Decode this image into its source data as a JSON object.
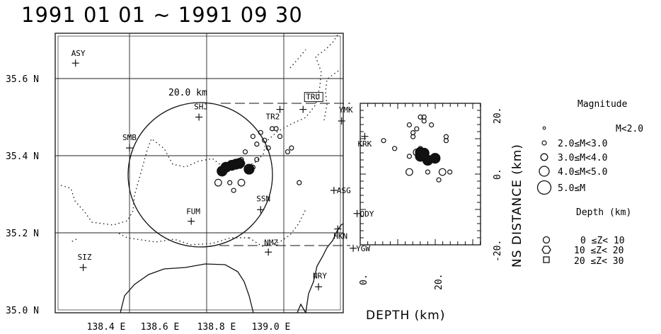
{
  "title": "1991 01 01 ~ 1991 09 30",
  "map": {
    "lon_ticks": [
      "138.4 E",
      "138.6 E",
      "138.8 E",
      "139.0 E"
    ],
    "lat_ticks": [
      "35.6 N",
      "35.4 N",
      "35.2 N",
      "35.0 N"
    ],
    "scale_label": "20.0 km",
    "stations": [
      {
        "code": "ASY",
        "lon": 138.36,
        "lat": 35.64
      },
      {
        "code": "SHJ",
        "lon": 138.68,
        "lat": 35.5
      },
      {
        "code": "TR2",
        "lon": 138.89,
        "lat": 35.52
      },
      {
        "code": "TRU",
        "lon": 138.95,
        "lat": 35.52,
        "boxed": true
      },
      {
        "code": "YMK",
        "lon": 139.05,
        "lat": 35.49
      },
      {
        "code": "SMB",
        "lon": 138.5,
        "lat": 35.42
      },
      {
        "code": "KRK",
        "lon": 139.11,
        "lat": 35.45
      },
      {
        "code": "ASG",
        "lon": 139.03,
        "lat": 35.31
      },
      {
        "code": "FUM",
        "lon": 138.66,
        "lat": 35.23
      },
      {
        "code": "SSN",
        "lon": 138.84,
        "lat": 35.26
      },
      {
        "code": "ODY",
        "lon": 139.09,
        "lat": 35.25
      },
      {
        "code": "HKN",
        "lon": 139.04,
        "lat": 35.21
      },
      {
        "code": "NMZ",
        "lon": 138.86,
        "lat": 35.15
      },
      {
        "code": "YGW",
        "lon": 139.08,
        "lat": 35.16
      },
      {
        "code": "SIZ",
        "lon": 138.38,
        "lat": 35.11
      },
      {
        "code": "NRY",
        "lon": 138.99,
        "lat": 35.06
      }
    ],
    "circle_center": {
      "lon": 138.8,
      "lat": 35.35
    },
    "circle_radius_km": 20.0
  },
  "events": [
    {
      "lon": 138.75,
      "lat": 35.37,
      "depth": 15,
      "mag": 4.5
    },
    {
      "lon": 138.765,
      "lat": 35.375,
      "depth": 15,
      "mag": 4.2
    },
    {
      "lon": 138.776,
      "lat": 35.378,
      "depth": 16,
      "mag": 4.2
    },
    {
      "lon": 138.785,
      "lat": 35.38,
      "depth": 15,
      "mag": 4.2
    },
    {
      "lon": 138.74,
      "lat": 35.36,
      "depth": 17,
      "mag": 4.4
    },
    {
      "lon": 138.81,
      "lat": 35.365,
      "depth": 19,
      "mag": 4.5
    },
    {
      "lon": 138.8,
      "lat": 35.41,
      "depth": 5,
      "mag": 2.5
    },
    {
      "lon": 138.83,
      "lat": 35.43,
      "depth": 13,
      "mag": 2.5
    },
    {
      "lon": 138.86,
      "lat": 35.42,
      "depth": 13,
      "mag": 2.4
    },
    {
      "lon": 138.84,
      "lat": 35.46,
      "depth": 16,
      "mag": 2.5
    },
    {
      "lon": 138.87,
      "lat": 35.47,
      "depth": 16,
      "mag": 2.5
    },
    {
      "lon": 138.88,
      "lat": 35.47,
      "depth": 15,
      "mag": 2.5
    },
    {
      "lon": 138.82,
      "lat": 35.45,
      "depth": 12,
      "mag": 2.4
    },
    {
      "lon": 138.85,
      "lat": 35.44,
      "depth": 14,
      "mag": 2.4
    },
    {
      "lon": 138.89,
      "lat": 35.45,
      "depth": 18,
      "mag": 2.5
    },
    {
      "lon": 138.91,
      "lat": 35.41,
      "depth": 22,
      "mag": 2.4
    },
    {
      "lon": 138.92,
      "lat": 35.42,
      "depth": 22,
      "mag": 2.4
    },
    {
      "lon": 138.79,
      "lat": 35.38,
      "depth": 14,
      "mag": 3.2
    },
    {
      "lon": 138.79,
      "lat": 35.39,
      "depth": 15,
      "mag": 2.6
    },
    {
      "lon": 138.73,
      "lat": 35.33,
      "depth": 12,
      "mag": 3.2
    },
    {
      "lon": 138.76,
      "lat": 35.33,
      "depth": 17,
      "mag": 2.5
    },
    {
      "lon": 138.77,
      "lat": 35.31,
      "depth": 20,
      "mag": 2.4
    },
    {
      "lon": 138.94,
      "lat": 35.33,
      "depth": 23,
      "mag": 2.4
    },
    {
      "lon": 138.79,
      "lat": 35.33,
      "depth": 21,
      "mag": 3.1
    },
    {
      "lon": 138.82,
      "lat": 35.37,
      "depth": 12,
      "mag": 2.4
    },
    {
      "lon": 138.83,
      "lat": 35.39,
      "depth": 8,
      "mag": 2.4
    }
  ],
  "cross_section": {
    "xlabel": "DEPTH (km)",
    "ylabel": "NS DISTANCE (km)",
    "x_ticks": [
      "0.",
      "20."
    ],
    "y_ticks": [
      "20.",
      "0.",
      "-20."
    ]
  },
  "legend": {
    "magnitude_title": "Magnitude",
    "magnitude_items": [
      "M<2.0",
      "2.0≤M<3.0",
      "3.0≤M<4.0",
      "4.0≤M<5.0",
      "5.0≤M"
    ],
    "depth_title": "Depth (km)",
    "depth_items": [
      "0 ≤Z< 10",
      "10 ≤Z< 20",
      "20 ≤Z< 30"
    ]
  }
}
